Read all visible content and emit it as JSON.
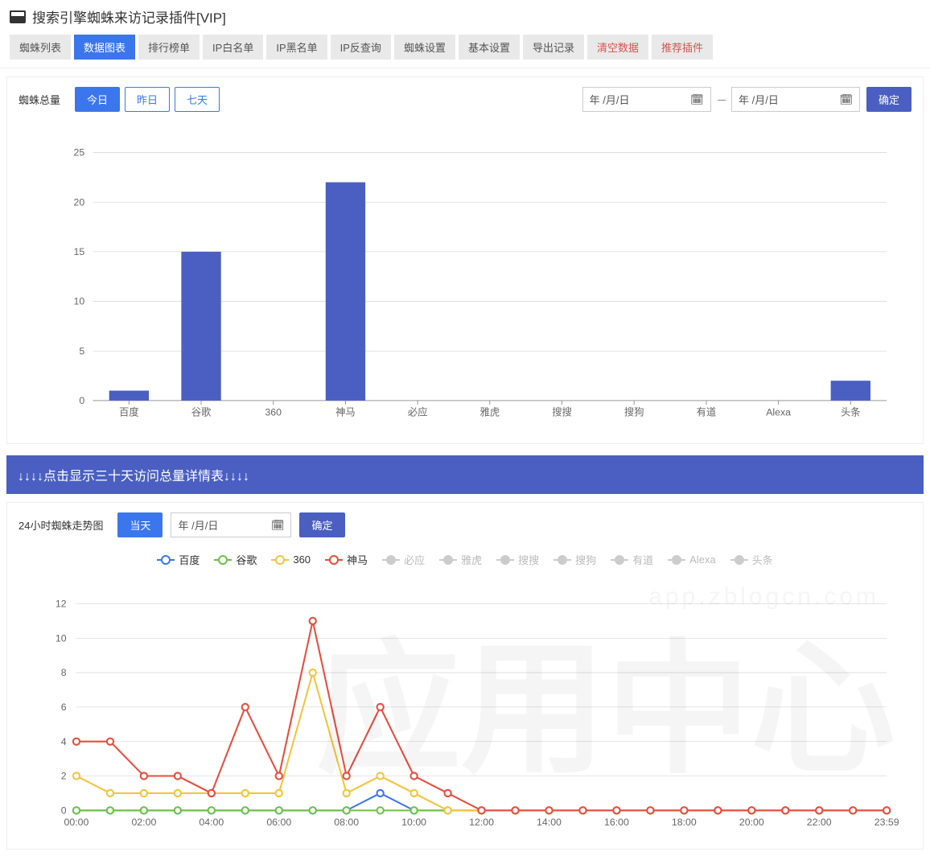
{
  "header": {
    "title": "搜索引擎蜘蛛来访记录插件[VIP]"
  },
  "tabs": [
    {
      "label": "蜘蛛列表",
      "active": false,
      "danger": false
    },
    {
      "label": "数据图表",
      "active": true,
      "danger": false
    },
    {
      "label": "排行榜单",
      "active": false,
      "danger": false
    },
    {
      "label": "IP白名单",
      "active": false,
      "danger": false
    },
    {
      "label": "IP黑名单",
      "active": false,
      "danger": false
    },
    {
      "label": "IP反查询",
      "active": false,
      "danger": false
    },
    {
      "label": "蜘蛛设置",
      "active": false,
      "danger": false
    },
    {
      "label": "基本设置",
      "active": false,
      "danger": false
    },
    {
      "label": "导出记录",
      "active": false,
      "danger": false
    },
    {
      "label": "清空数据",
      "active": false,
      "danger": true
    },
    {
      "label": "推荐插件",
      "active": false,
      "danger": true
    }
  ],
  "panel1": {
    "label": "蜘蛛总量",
    "buttons": [
      {
        "label": "今日",
        "primary": true
      },
      {
        "label": "昨日",
        "primary": false
      },
      {
        "label": "七天",
        "primary": false
      }
    ],
    "date_ph": "年 /月/日",
    "range_sep": "----",
    "confirm": "确定"
  },
  "bar_chart": {
    "type": "bar",
    "categories": [
      "百度",
      "谷歌",
      "360",
      "神马",
      "必应",
      "雅虎",
      "搜搜",
      "搜狗",
      "有道",
      "Alexa",
      "头条"
    ],
    "values": [
      1,
      15,
      0,
      22,
      0,
      0,
      0,
      0,
      0,
      0,
      2
    ],
    "bar_color": "#4a5fc1",
    "ylim": [
      0,
      25
    ],
    "ytick_step": 5,
    "grid_color": "#cccccc",
    "axis_color": "#999999",
    "label_color": "#666666",
    "bar_width_ratio": 0.55
  },
  "banner": {
    "text": "↓↓↓↓点击显示三十天访问总量详情表↓↓↓↓"
  },
  "panel2": {
    "label": "24小时蜘蛛走势图",
    "today_btn": "当天",
    "date_ph": "年 /月/日",
    "confirm": "确定"
  },
  "line_chart": {
    "type": "line",
    "x_labels": [
      "00:00",
      "02:00",
      "04:00",
      "06:00",
      "08:00",
      "10:00",
      "12:00",
      "14:00",
      "16:00",
      "18:00",
      "20:00",
      "22:00",
      "23:59"
    ],
    "x_points_per_tick": 2,
    "ylim": [
      0,
      12
    ],
    "ytick_step": 2,
    "grid_color": "#cccccc",
    "axis_color": "#999999",
    "label_color": "#666666",
    "marker_radius": 4,
    "line_width": 2,
    "series": [
      {
        "name": "百度",
        "color": "#3b76ed",
        "active": true,
        "data": [
          0,
          0,
          0,
          0,
          0,
          0,
          0,
          0,
          0,
          1,
          0,
          0,
          0,
          0,
          0,
          0,
          0,
          0,
          0,
          0,
          0,
          0,
          0,
          0,
          0
        ]
      },
      {
        "name": "谷歌",
        "color": "#6ec04a",
        "active": true,
        "data": [
          0,
          0,
          0,
          0,
          0,
          0,
          0,
          0,
          0,
          0,
          0,
          0,
          0,
          0,
          0,
          0,
          0,
          0,
          0,
          0,
          0,
          0,
          0,
          0,
          0
        ]
      },
      {
        "name": "360",
        "color": "#f5c33b",
        "active": true,
        "data": [
          2,
          1,
          1,
          1,
          1,
          1,
          1,
          8,
          1,
          2,
          1,
          0,
          0,
          0,
          0,
          0,
          0,
          0,
          0,
          0,
          0,
          0,
          0,
          0,
          0
        ]
      },
      {
        "name": "神马",
        "color": "#e74c3c",
        "active": true,
        "data": [
          4,
          4,
          2,
          2,
          1,
          6,
          2,
          11,
          2,
          6,
          2,
          1,
          0,
          0,
          0,
          0,
          0,
          0,
          0,
          0,
          0,
          0,
          0,
          0,
          0
        ]
      },
      {
        "name": "必应",
        "color": "#bbbbbb",
        "active": false,
        "data": []
      },
      {
        "name": "雅虎",
        "color": "#bbbbbb",
        "active": false,
        "data": []
      },
      {
        "name": "搜搜",
        "color": "#bbbbbb",
        "active": false,
        "data": []
      },
      {
        "name": "搜狗",
        "color": "#bbbbbb",
        "active": false,
        "data": []
      },
      {
        "name": "有道",
        "color": "#bbbbbb",
        "active": false,
        "data": []
      },
      {
        "name": "Alexa",
        "color": "#bbbbbb",
        "active": false,
        "data": []
      },
      {
        "name": "头条",
        "color": "#bbbbbb",
        "active": false,
        "data": []
      }
    ]
  },
  "watermark": {
    "big_text": "应用中心",
    "url_text": "app.zblogcn.com"
  }
}
